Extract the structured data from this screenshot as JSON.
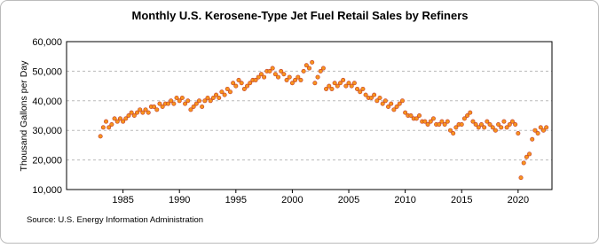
{
  "chart_data": {
    "type": "scatter",
    "title": "Monthly U.S. Kerosene-Type Jet Fuel Retail Sales by Refiners",
    "y_label": "Thousand Gallons per Day",
    "source": "Source: U.S. Energy Information Administration",
    "color": "#f7941d",
    "grid": true,
    "xlim": [
      1980,
      2023
    ],
    "ylim": [
      10000,
      60000
    ],
    "xticks": [
      1985,
      1990,
      1995,
      2000,
      2005,
      2010,
      2015,
      2020
    ],
    "yticks": [
      {
        "value": 10000,
        "label": "10,000"
      },
      {
        "value": 20000,
        "label": "20,000"
      },
      {
        "value": 30000,
        "label": "30,000"
      },
      {
        "value": 40000,
        "label": "40,000"
      },
      {
        "value": 50000,
        "label": "50,000"
      },
      {
        "value": 60000,
        "label": "60,000"
      }
    ],
    "x": [
      1983,
      1983.25,
      1983.5,
      1983.75,
      1984,
      1984.25,
      1984.5,
      1984.75,
      1985,
      1985.25,
      1985.5,
      1985.75,
      1986,
      1986.25,
      1986.5,
      1986.75,
      1987,
      1987.25,
      1987.5,
      1987.75,
      1988,
      1988.25,
      1988.5,
      1988.75,
      1989,
      1989.25,
      1989.5,
      1989.75,
      1990,
      1990.25,
      1990.5,
      1990.75,
      1991,
      1991.25,
      1991.5,
      1991.75,
      1992,
      1992.25,
      1992.5,
      1992.75,
      1993,
      1993.25,
      1993.5,
      1993.75,
      1994,
      1994.25,
      1994.5,
      1994.75,
      1995,
      1995.25,
      1995.5,
      1995.75,
      1996,
      1996.25,
      1996.5,
      1996.75,
      1997,
      1997.25,
      1997.5,
      1997.75,
      1998,
      1998.25,
      1998.5,
      1998.75,
      1999,
      1999.25,
      1999.5,
      1999.75,
      2000,
      2000.25,
      2000.5,
      2000.75,
      2001,
      2001.25,
      2001.5,
      2001.75,
      2002,
      2002.25,
      2002.5,
      2002.75,
      2003,
      2003.25,
      2003.5,
      2003.75,
      2004,
      2004.25,
      2004.5,
      2004.75,
      2005,
      2005.25,
      2005.5,
      2005.75,
      2006,
      2006.25,
      2006.5,
      2006.75,
      2007,
      2007.25,
      2007.5,
      2007.75,
      2008,
      2008.25,
      2008.5,
      2008.75,
      2009,
      2009.25,
      2009.5,
      2009.75,
      2010,
      2010.25,
      2010.5,
      2010.75,
      2011,
      2011.25,
      2011.5,
      2011.75,
      2012,
      2012.25,
      2012.5,
      2012.75,
      2013,
      2013.25,
      2013.5,
      2013.75,
      2014,
      2014.25,
      2014.5,
      2014.75,
      2015,
      2015.25,
      2015.5,
      2015.75,
      2016,
      2016.25,
      2016.5,
      2016.75,
      2017,
      2017.25,
      2017.5,
      2017.75,
      2018,
      2018.25,
      2018.5,
      2018.75,
      2019,
      2019.25,
      2019.5,
      2019.75,
      2020,
      2020.25,
      2020.5,
      2020.75,
      2021,
      2021.25,
      2021.5,
      2021.75,
      2022,
      2022.25,
      2022.5
    ],
    "values": [
      28000,
      31000,
      33000,
      31000,
      32000,
      34000,
      33000,
      34000,
      33000,
      34000,
      35000,
      36000,
      35000,
      36000,
      37000,
      36000,
      37000,
      36000,
      38000,
      38000,
      37000,
      39000,
      38000,
      39000,
      39000,
      40000,
      39000,
      41000,
      40000,
      41000,
      39000,
      40000,
      37000,
      38000,
      39000,
      40000,
      38000,
      40000,
      41000,
      40000,
      41000,
      42000,
      41000,
      43000,
      42000,
      44000,
      43000,
      46000,
      45000,
      47000,
      46000,
      44000,
      45000,
      46000,
      47000,
      47000,
      48000,
      49000,
      48000,
      50000,
      50000,
      51000,
      49000,
      48000,
      50000,
      49000,
      47000,
      48000,
      46000,
      47000,
      48000,
      47000,
      50000,
      52000,
      51000,
      53000,
      46000,
      48000,
      50000,
      51000,
      44000,
      45000,
      44000,
      46000,
      45000,
      46000,
      47000,
      45000,
      46000,
      45000,
      46000,
      44000,
      43000,
      44000,
      42000,
      41000,
      41000,
      42000,
      40000,
      41000,
      39000,
      40000,
      38000,
      39000,
      37000,
      38000,
      39000,
      40000,
      36000,
      35000,
      35000,
      34000,
      34000,
      35000,
      33000,
      33000,
      32000,
      33000,
      34000,
      32000,
      32000,
      33000,
      32000,
      33000,
      30000,
      29000,
      31000,
      32000,
      32000,
      34000,
      35000,
      36000,
      33000,
      32000,
      31000,
      32000,
      31000,
      33000,
      32000,
      31000,
      30000,
      32000,
      31000,
      33000,
      31000,
      32000,
      33000,
      32000,
      29000,
      14000,
      19000,
      21000,
      22000,
      27000,
      30000,
      29000,
      31000,
      30000,
      31000
    ]
  }
}
